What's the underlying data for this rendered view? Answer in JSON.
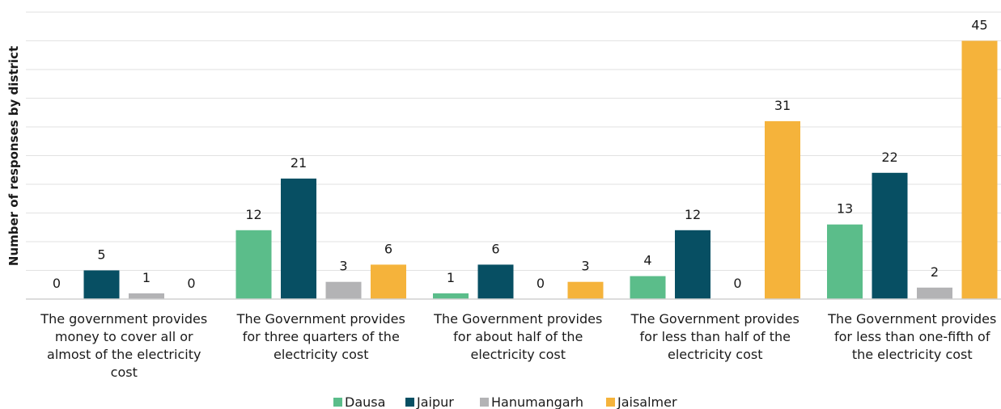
{
  "chart_data": {
    "type": "bar",
    "title": "",
    "xlabel": "",
    "ylabel": "Number of responses by district",
    "ylim": [
      0,
      50
    ],
    "grid": true,
    "legend_position": "bottom",
    "categories": [
      [
        "The government provides",
        "money to cover all or",
        "almost of the electricity",
        "cost"
      ],
      [
        "The Government provides",
        "for three quarters of the",
        "electricity cost"
      ],
      [
        "The Government provides",
        "for about half of the",
        "electricity cost"
      ],
      [
        "The Government provides",
        "for less than half of the",
        "electricity cost"
      ],
      [
        "The Government provides",
        "for less than one-fifth of",
        "the electricity cost"
      ]
    ],
    "series": [
      {
        "name": "Dausa",
        "color": "#5bbd8a",
        "values": [
          0,
          12,
          1,
          4,
          13
        ]
      },
      {
        "name": "Jaipur",
        "color": "#074f63",
        "values": [
          5,
          21,
          6,
          12,
          22
        ]
      },
      {
        "name": "Hanumangarh",
        "color": "#b3b3b5",
        "values": [
          1,
          3,
          0,
          0,
          2
        ]
      },
      {
        "name": "Jaisalmer",
        "color": "#f5b33b",
        "values": [
          0,
          6,
          3,
          31,
          45
        ]
      }
    ]
  }
}
